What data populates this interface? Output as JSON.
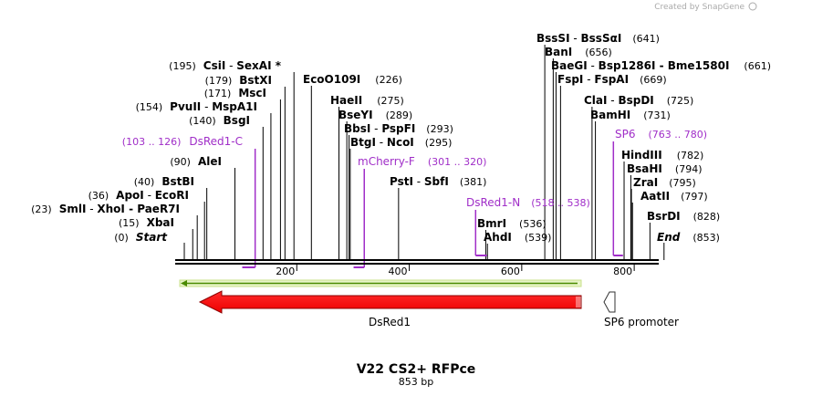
{
  "credit": "Created by SnapGene",
  "map": {
    "title": "V22 CS2+ RFPce",
    "length_label": "853 bp",
    "length_bp": 853,
    "ticks": [
      "200",
      "400",
      "600",
      "800"
    ]
  },
  "sites_left": [
    {
      "pos": "(195)",
      "name": "CsiI",
      "sep": " - ",
      "name2": "SexAI *",
      "bp": 195
    },
    {
      "pos": "(179)",
      "name": "BstXI",
      "bp": 179
    },
    {
      "pos": "(171)",
      "name": "MscI",
      "bp": 171
    },
    {
      "pos": "(154)",
      "name": "PvuII",
      "sep": " - ",
      "name2": "MspA1I",
      "bp": 154
    },
    {
      "pos": "(140)",
      "name": "BsgI",
      "bp": 140
    },
    {
      "pos": "(90)",
      "name": "AleI",
      "bp": 90
    },
    {
      "pos": "(40)",
      "name": "BstBI",
      "bp": 40
    },
    {
      "pos": "(36)",
      "name": "ApoI",
      "sep": " - ",
      "name2": "EcoRI",
      "bp": 36
    },
    {
      "pos": "(23)",
      "name": "SmlI",
      "sep": " - ",
      "name2": "XhoI - PaeR7I",
      "bp": 23
    },
    {
      "pos": "(15)",
      "name": "XbaI",
      "bp": 15
    },
    {
      "pos": "(0)",
      "name": "Start",
      "bp": 0
    }
  ],
  "sites_mid": [
    {
      "name": "EcoO109I",
      "pos": "(226)",
      "bp": 226
    },
    {
      "name": "HaeII",
      "pos": "(275)",
      "bp": 275
    },
    {
      "name": "BseYI",
      "pos": "(289)",
      "bp": 289
    },
    {
      "name": "BbsI",
      "sep": " - ",
      "name2": "PspFI",
      "pos": "(293)",
      "bp": 293
    },
    {
      "name": "BtgI",
      "sep": " - ",
      "name2": "NcoI",
      "pos": "(295)",
      "bp": 295
    },
    {
      "name": "PstI",
      "sep": " - ",
      "name2": "SbfI",
      "pos": "(381)",
      "bp": 381
    },
    {
      "name": "BmrI",
      "pos": "(536)",
      "bp": 536
    },
    {
      "name": "AhdI",
      "pos": "(539)",
      "bp": 539
    }
  ],
  "sites_right": [
    {
      "name": "BssSI",
      "sep": " - ",
      "name2": "BssSαI",
      "pos": "(641)",
      "bp": 641
    },
    {
      "name": "BanI",
      "pos": "(656)",
      "bp": 656
    },
    {
      "name": "BaeGI",
      "sep": " - ",
      "name2": "Bsp1286I - Bme1580I",
      "pos": "(661)",
      "bp": 661
    },
    {
      "name": "FspI",
      "sep": " - ",
      "name2": "FspAI",
      "pos": "(669)",
      "bp": 669
    },
    {
      "name": "ClaI",
      "sep": " - ",
      "name2": "BspDI",
      "pos": "(725)",
      "bp": 725
    },
    {
      "name": "BamHI",
      "pos": "(731)",
      "bp": 731
    },
    {
      "name": "HindIII",
      "pos": "(782)",
      "bp": 782
    },
    {
      "name": "BsaHI",
      "pos": "(794)",
      "bp": 794
    },
    {
      "name": "ZraI",
      "pos": "(795)",
      "bp": 795
    },
    {
      "name": "AatII",
      "pos": "(797)",
      "bp": 797
    },
    {
      "name": "BsrDI",
      "pos": "(828)",
      "bp": 828
    },
    {
      "name": "End",
      "pos": "(853)",
      "bp": 853
    }
  ],
  "primers": [
    {
      "range": "(103 .. 126)",
      "name": "DsRed1-C",
      "start": 103,
      "end": 126
    },
    {
      "name": "mCherry-F",
      "range": "(301 .. 320)",
      "start": 301,
      "end": 320
    },
    {
      "name": "DsRed1-N",
      "range": "(518 .. 538)",
      "start": 518,
      "end": 538
    },
    {
      "name": "SP6",
      "range": "(763 .. 780)",
      "start": 763,
      "end": 780
    }
  ],
  "features": [
    {
      "name": "DsRed1",
      "type": "CDS",
      "color": "#ff0000",
      "start": 22,
      "end": 699
    },
    {
      "name": "SP6 promoter",
      "type": "promoter",
      "color": "#ffffff",
      "start": 763,
      "end": 780
    }
  ],
  "colors": {
    "primer": "#a02ec8",
    "orf": "#4a8a00",
    "orf_fill": "#e8f5c8",
    "cds": "#ff0000"
  }
}
